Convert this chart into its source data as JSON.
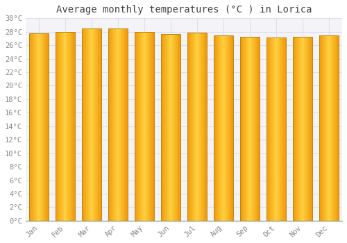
{
  "months": [
    "Jan",
    "Feb",
    "Mar",
    "Apr",
    "May",
    "Jun",
    "Jul",
    "Aug",
    "Sep",
    "Oct",
    "Nov",
    "Dec"
  ],
  "temperatures": [
    27.8,
    28.0,
    28.5,
    28.5,
    28.0,
    27.7,
    27.9,
    27.5,
    27.2,
    27.1,
    27.2,
    27.5
  ],
  "title": "Average monthly temperatures (°C ) in Lorica",
  "ylim": [
    0,
    30
  ],
  "ytick_step": 2,
  "bar_color_center": "#FFD040",
  "bar_color_edge": "#F0A000",
  "bar_border_color": "#B8880A",
  "background_color": "#FFFFFF",
  "plot_bg_color": "#F4F4F8",
  "grid_color": "#DDDDEE",
  "title_fontsize": 10,
  "tick_fontsize": 7.5,
  "title_color": "#444444",
  "tick_color": "#888888",
  "bar_width": 0.72
}
